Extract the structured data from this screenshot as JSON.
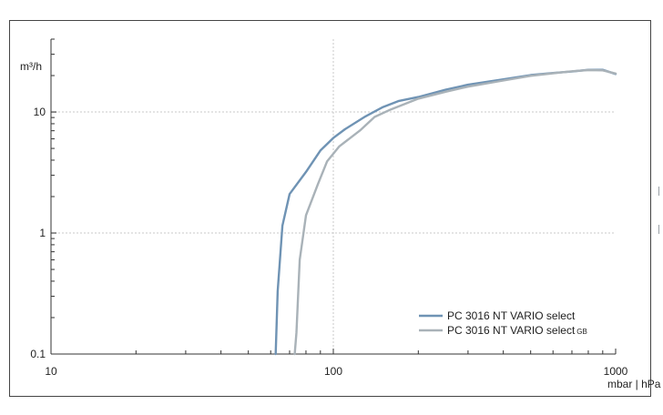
{
  "chart_data": {
    "type": "line",
    "title": "",
    "ylabel": "m³/h",
    "xlabel": "mbar | hPa",
    "xscale": "log",
    "yscale": "log",
    "xlim": [
      10,
      1000
    ],
    "ylim": [
      0.1,
      40
    ],
    "xticks": [
      {
        "value": 10,
        "label": "10"
      },
      {
        "value": 100,
        "label": "100"
      },
      {
        "value": 1000,
        "label": "1000"
      }
    ],
    "yticks": [
      {
        "value": 0.1,
        "label": "0.1"
      },
      {
        "value": 1,
        "label": "1"
      },
      {
        "value": 10,
        "label": "10"
      }
    ],
    "grid": true,
    "legend_position": "bottom-right",
    "series": [
      {
        "name": "PC 3016 NT VARIO select",
        "color": "#6f93b4",
        "x": [
          62.5,
          63.5,
          66,
          70,
          80,
          90,
          100,
          110,
          130,
          150,
          170,
          200,
          250,
          300,
          400,
          500,
          600,
          700,
          800,
          900,
          1000
        ],
        "y": [
          0.1,
          0.33,
          1.15,
          2.1,
          3.2,
          4.8,
          6.1,
          7.2,
          9.2,
          11,
          12.3,
          13.3,
          15.3,
          16.8,
          18.6,
          20.2,
          21,
          21.6,
          22.3,
          22.3,
          20.6
        ]
      },
      {
        "name": "PC 3016 NT VARIO select",
        "name_suffix": "GB",
        "color": "#a9b2b8",
        "x": [
          73,
          74,
          76,
          80,
          88,
          95,
          105,
          125,
          140,
          160,
          200,
          250,
          300,
          400,
          500,
          600,
          700,
          800,
          900,
          1000
        ],
        "y": [
          0.1,
          0.15,
          0.6,
          1.4,
          2.5,
          3.9,
          5.2,
          7.1,
          9.1,
          10.5,
          12.9,
          14.7,
          16.2,
          18.2,
          19.9,
          20.9,
          21.7,
          22.2,
          22.1,
          20.8
        ]
      }
    ]
  }
}
